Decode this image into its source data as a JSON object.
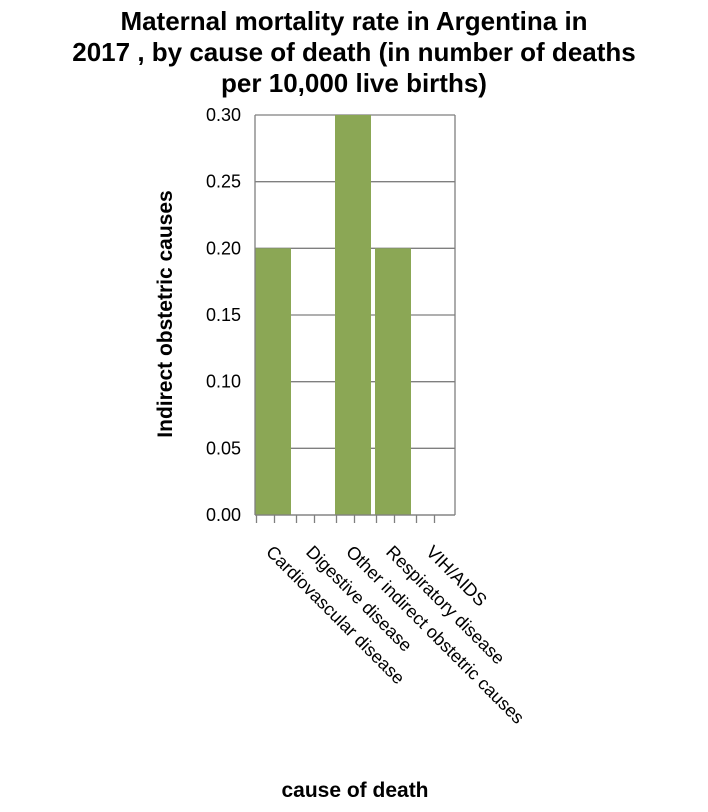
{
  "chart_data": {
    "type": "bar",
    "title_lines": [
      "Maternal mortality rate in Argentina in",
      "2017 , by cause of death (in number of deaths",
      "per 10,000 live births)"
    ],
    "xlabel": "cause of death",
    "ylabel": "Indirect obstetric causes",
    "categories": [
      "Cardiovascular disease",
      "Digestive disease",
      "Other indirect obstetric causes",
      "Respiratory disease",
      "VIH/AIDS"
    ],
    "values": [
      0.2,
      0,
      0.3,
      0.2,
      0
    ],
    "ylim": [
      0,
      0.3
    ],
    "yticks": [
      "0.00",
      "0.05",
      "0.10",
      "0.15",
      "0.20",
      "0.25",
      "0.30"
    ],
    "grid": true,
    "bar_color": "#8ba755",
    "grid_color": "#7f7f7f"
  }
}
